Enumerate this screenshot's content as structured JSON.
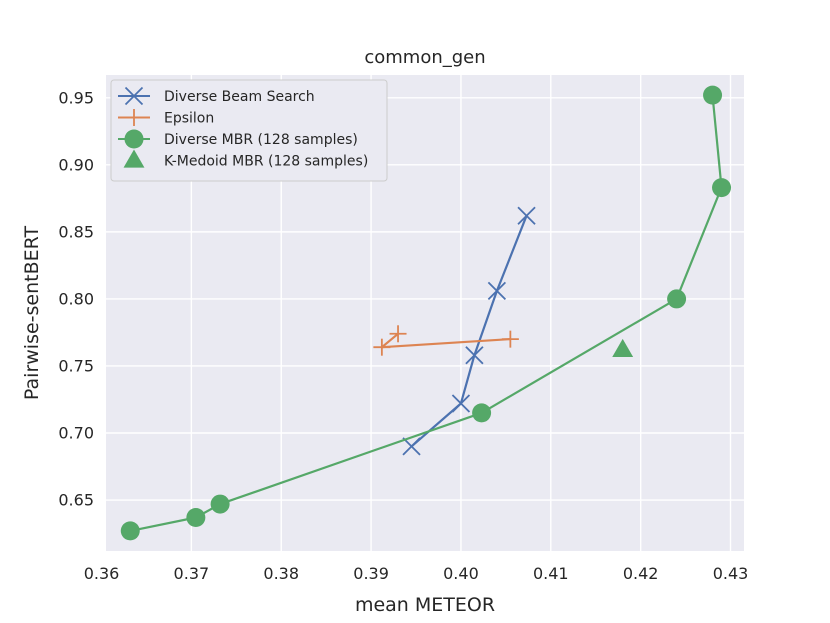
{
  "chart_data": {
    "type": "line",
    "title": "common_gen",
    "xlabel": "mean METEOR",
    "ylabel": "Pairwise-sentBERT",
    "xlim": [
      0.3605,
      0.4315
    ],
    "ylim": [
      0.612,
      0.967
    ],
    "xticks": [
      0.36,
      0.37,
      0.38,
      0.39,
      0.4,
      0.41,
      0.42,
      0.43
    ],
    "xtick_labels": [
      "0.36",
      "0.37",
      "0.38",
      "0.39",
      "0.40",
      "0.41",
      "0.42",
      "0.43"
    ],
    "yticks": [
      0.65,
      0.7,
      0.75,
      0.8,
      0.85,
      0.9,
      0.95
    ],
    "ytick_labels": [
      "0.65",
      "0.70",
      "0.75",
      "0.80",
      "0.85",
      "0.90",
      "0.95"
    ],
    "grid": true,
    "legend_position": "top-left",
    "series": [
      {
        "name": "Diverse Beam Search",
        "marker": "x",
        "color": "#4c72b0",
        "connected": true,
        "points": [
          [
            0.4073,
            0.862
          ],
          [
            0.404,
            0.806
          ],
          [
            0.4015,
            0.758
          ],
          [
            0.4,
            0.722
          ],
          [
            0.3945,
            0.69
          ]
        ]
      },
      {
        "name": "Epsilon",
        "marker": "+",
        "color": "#dd8452",
        "connected": true,
        "points": [
          [
            0.393,
            0.774
          ],
          [
            0.3912,
            0.764
          ],
          [
            0.4055,
            0.77
          ]
        ]
      },
      {
        "name": "Diverse MBR (128 samples)",
        "marker": "circle",
        "color": "#55a868",
        "connected": true,
        "points": [
          [
            0.428,
            0.952
          ],
          [
            0.429,
            0.883
          ],
          [
            0.424,
            0.8
          ],
          [
            0.4023,
            0.715
          ],
          [
            0.3732,
            0.647
          ],
          [
            0.3705,
            0.637
          ],
          [
            0.3632,
            0.627
          ]
        ]
      },
      {
        "name": "K-Medoid MBR (128 samples)",
        "marker": "triangle",
        "color": "#55a868",
        "connected": false,
        "points": [
          [
            0.418,
            0.762
          ]
        ]
      }
    ]
  }
}
